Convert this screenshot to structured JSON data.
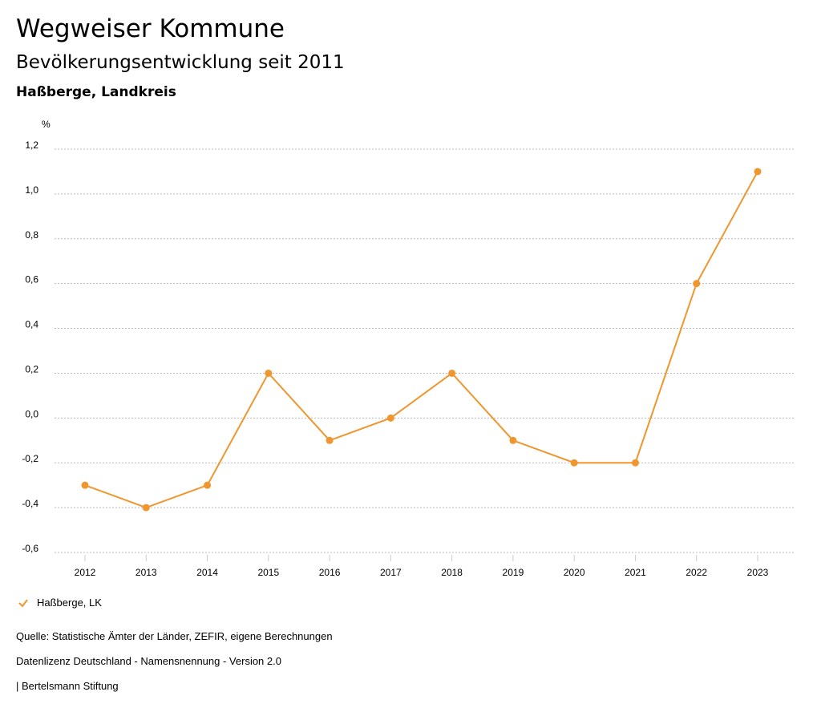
{
  "header": {
    "title": "Wegweiser Kommune",
    "subtitle": "Bevölkerungsentwicklung seit 2011",
    "region": "Haßberge, Landkreis"
  },
  "chart_data": {
    "type": "line",
    "ylabel": "%",
    "ylim": [
      -0.6,
      1.2
    ],
    "yticks": [
      -0.6,
      -0.4,
      -0.2,
      0.0,
      0.2,
      0.4,
      0.6,
      0.8,
      1.0,
      1.2
    ],
    "ytick_labels": [
      "-0,6",
      "-0,4",
      "-0,2",
      "0,0",
      "0,2",
      "0,4",
      "0,6",
      "0,8",
      "1,0",
      "1,2"
    ],
    "grid": true,
    "x": [
      "2012",
      "2013",
      "2014",
      "2015",
      "2016",
      "2017",
      "2018",
      "2019",
      "2020",
      "2021",
      "2022",
      "2023"
    ],
    "series": [
      {
        "name": "Haßberge, LK",
        "color": "#f0962e",
        "values": [
          -0.3,
          -0.4,
          -0.3,
          0.2,
          -0.1,
          0.0,
          0.2,
          -0.1,
          -0.2,
          -0.2,
          0.6,
          1.1
        ]
      }
    ],
    "legend_position": "bottom-left"
  },
  "footer": {
    "source": "Quelle: Statistische Ämter der Länder, ZEFIR, eigene Berechnungen",
    "license": "Datenlizenz Deutschland - Namensnennung - Version 2.0",
    "publisher": "| Bertelsmann Stiftung"
  }
}
